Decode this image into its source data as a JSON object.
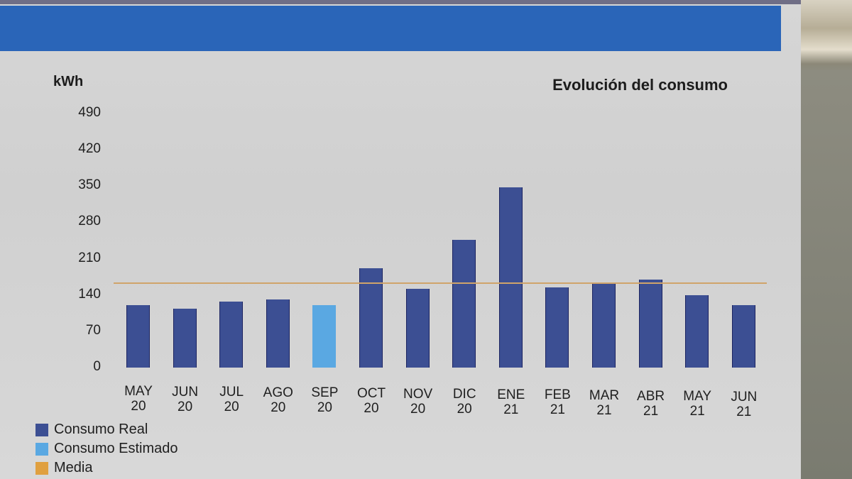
{
  "header": {
    "band_color": "#2a65b8"
  },
  "chart_data": {
    "type": "bar",
    "title": "Evolución del consumo",
    "xlabel": "",
    "ylabel": "kWh",
    "ylim": [
      0,
      490
    ],
    "yticks": [
      "490",
      "420",
      "350",
      "280",
      "210",
      "140",
      "70",
      "0"
    ],
    "categories": [
      {
        "month": "MAY",
        "year": "20"
      },
      {
        "month": "JUN",
        "year": "20"
      },
      {
        "month": "JUL",
        "year": "20"
      },
      {
        "month": "AGO",
        "year": "20"
      },
      {
        "month": "SEP",
        "year": "20"
      },
      {
        "month": "OCT",
        "year": "20"
      },
      {
        "month": "NOV",
        "year": "20"
      },
      {
        "month": "DIC",
        "year": "20"
      },
      {
        "month": "ENE",
        "year": "21"
      },
      {
        "month": "FEB",
        "year": "21"
      },
      {
        "month": "MAR",
        "year": "21"
      },
      {
        "month": "ABR",
        "year": "21"
      },
      {
        "month": "MAY",
        "year": "21"
      },
      {
        "month": "JUN",
        "year": "21"
      }
    ],
    "series": [
      {
        "name": "Consumo Real",
        "color": "#3c4f93",
        "values": [
          120,
          113,
          127,
          132,
          null,
          191,
          152,
          246,
          347,
          155,
          163,
          170,
          139,
          120
        ]
      },
      {
        "name": "Consumo Estimado",
        "color": "#5aa8e2",
        "values": [
          null,
          null,
          null,
          null,
          121,
          null,
          null,
          null,
          null,
          null,
          null,
          null,
          null,
          null
        ]
      },
      {
        "name": "Media",
        "color": "#e0a040",
        "type": "line",
        "value": 164
      }
    ],
    "grid": false,
    "legend_position": "bottom-left"
  },
  "legend": {
    "items": [
      {
        "label": "Consumo Real",
        "color": "#3c4f93"
      },
      {
        "label": "Consumo Estimado",
        "color": "#5aa8e2"
      },
      {
        "label": "Media",
        "color": "#e0a040"
      }
    ]
  }
}
